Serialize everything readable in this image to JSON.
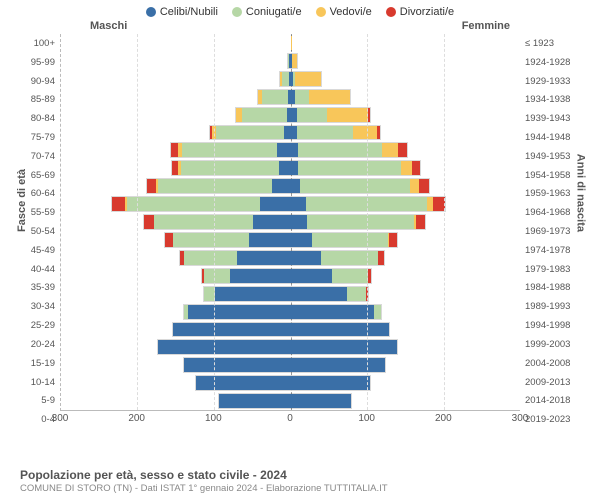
{
  "legend": [
    {
      "label": "Celibi/Nubili",
      "color": "#3a6fa7"
    },
    {
      "label": "Coniugati/e",
      "color": "#b6d7a6"
    },
    {
      "label": "Vedovi/e",
      "color": "#f8c65a"
    },
    {
      "label": "Divorziati/e",
      "color": "#d83a2e"
    }
  ],
  "header_male": "Maschi",
  "header_female": "Femmine",
  "axis_left": "Fasce di età",
  "axis_right": "Anni di nascita",
  "title": "Popolazione per età, sesso e stato civile - 2024",
  "subtitle": "COMUNE DI STORO (TN) - Dati ISTAT 1° gennaio 2024 - Elaborazione TUTTITALIA.IT",
  "x_max": 300,
  "x_ticks": [
    300,
    200,
    100,
    0,
    100,
    200,
    300
  ],
  "colors": {
    "cel": "#3a6fa7",
    "con": "#b6d7a6",
    "ved": "#f8c65a",
    "div": "#d83a2e",
    "grid": "#dddddd",
    "bg": "#ffffff"
  },
  "age_labels": [
    "100+",
    "95-99",
    "90-94",
    "85-89",
    "80-84",
    "75-79",
    "70-74",
    "65-69",
    "60-64",
    "55-59",
    "50-54",
    "45-49",
    "40-44",
    "35-39",
    "30-34",
    "25-29",
    "20-24",
    "15-19",
    "10-14",
    "5-9",
    "0-4"
  ],
  "year_labels": [
    "≤ 1923",
    "1924-1928",
    "1929-1933",
    "1934-1938",
    "1939-1943",
    "1944-1948",
    "1949-1953",
    "1954-1958",
    "1959-1963",
    "1964-1968",
    "1969-1973",
    "1974-1978",
    "1979-1983",
    "1984-1988",
    "1989-1993",
    "1994-1998",
    "1999-2003",
    "2004-2008",
    "2009-2013",
    "2014-2018",
    "2019-2023"
  ],
  "rows": [
    {
      "m": {
        "cel": 0,
        "con": 0,
        "ved": 0,
        "div": 0
      },
      "f": {
        "cel": 0,
        "con": 0,
        "ved": 2,
        "div": 0
      }
    },
    {
      "m": {
        "cel": 2,
        "con": 2,
        "ved": 0,
        "div": 0
      },
      "f": {
        "cel": 2,
        "con": 0,
        "ved": 8,
        "div": 0
      }
    },
    {
      "m": {
        "cel": 2,
        "con": 10,
        "ved": 3,
        "div": 0
      },
      "f": {
        "cel": 3,
        "con": 3,
        "ved": 35,
        "div": 0
      }
    },
    {
      "m": {
        "cel": 3,
        "con": 35,
        "ved": 6,
        "div": 0
      },
      "f": {
        "cel": 6,
        "con": 18,
        "ved": 55,
        "div": 0
      }
    },
    {
      "m": {
        "cel": 5,
        "con": 60,
        "ved": 8,
        "div": 0
      },
      "f": {
        "cel": 8,
        "con": 40,
        "ved": 55,
        "div": 2
      }
    },
    {
      "m": {
        "cel": 8,
        "con": 90,
        "ved": 6,
        "div": 3
      },
      "f": {
        "cel": 8,
        "con": 75,
        "ved": 32,
        "div": 3
      }
    },
    {
      "m": {
        "cel": 18,
        "con": 125,
        "ved": 5,
        "div": 10
      },
      "f": {
        "cel": 10,
        "con": 110,
        "ved": 22,
        "div": 12
      }
    },
    {
      "m": {
        "cel": 15,
        "con": 130,
        "ved": 3,
        "div": 8
      },
      "f": {
        "cel": 10,
        "con": 135,
        "ved": 15,
        "div": 10
      }
    },
    {
      "m": {
        "cel": 25,
        "con": 150,
        "ved": 2,
        "div": 12
      },
      "f": {
        "cel": 12,
        "con": 145,
        "ved": 12,
        "div": 13
      }
    },
    {
      "m": {
        "cel": 40,
        "con": 175,
        "ved": 2,
        "div": 18
      },
      "f": {
        "cel": 20,
        "con": 160,
        "ved": 8,
        "div": 15
      }
    },
    {
      "m": {
        "cel": 50,
        "con": 130,
        "ved": 0,
        "div": 13
      },
      "f": {
        "cel": 22,
        "con": 140,
        "ved": 3,
        "div": 12
      }
    },
    {
      "m": {
        "cel": 55,
        "con": 100,
        "ved": 0,
        "div": 10
      },
      "f": {
        "cel": 28,
        "con": 100,
        "ved": 2,
        "div": 10
      }
    },
    {
      "m": {
        "cel": 70,
        "con": 70,
        "ved": 0,
        "div": 6
      },
      "f": {
        "cel": 40,
        "con": 75,
        "ved": 0,
        "div": 8
      }
    },
    {
      "m": {
        "cel": 80,
        "con": 35,
        "ved": 0,
        "div": 2
      },
      "f": {
        "cel": 55,
        "con": 48,
        "ved": 0,
        "div": 3
      }
    },
    {
      "m": {
        "cel": 100,
        "con": 15,
        "ved": 0,
        "div": 0
      },
      "f": {
        "cel": 75,
        "con": 25,
        "ved": 0,
        "div": 2
      }
    },
    {
      "m": {
        "cel": 135,
        "con": 5,
        "ved": 0,
        "div": 0
      },
      "f": {
        "cel": 110,
        "con": 10,
        "ved": 0,
        "div": 0
      }
    },
    {
      "m": {
        "cel": 155,
        "con": 0,
        "ved": 0,
        "div": 0
      },
      "f": {
        "cel": 130,
        "con": 0,
        "ved": 0,
        "div": 0
      }
    },
    {
      "m": {
        "cel": 175,
        "con": 0,
        "ved": 0,
        "div": 0
      },
      "f": {
        "cel": 140,
        "con": 0,
        "ved": 0,
        "div": 0
      }
    },
    {
      "m": {
        "cel": 140,
        "con": 0,
        "ved": 0,
        "div": 0
      },
      "f": {
        "cel": 125,
        "con": 0,
        "ved": 0,
        "div": 0
      }
    },
    {
      "m": {
        "cel": 125,
        "con": 0,
        "ved": 0,
        "div": 0
      },
      "f": {
        "cel": 105,
        "con": 0,
        "ved": 0,
        "div": 0
      }
    },
    {
      "m": {
        "cel": 95,
        "con": 0,
        "ved": 0,
        "div": 0
      },
      "f": {
        "cel": 80,
        "con": 0,
        "ved": 0,
        "div": 0
      }
    }
  ]
}
